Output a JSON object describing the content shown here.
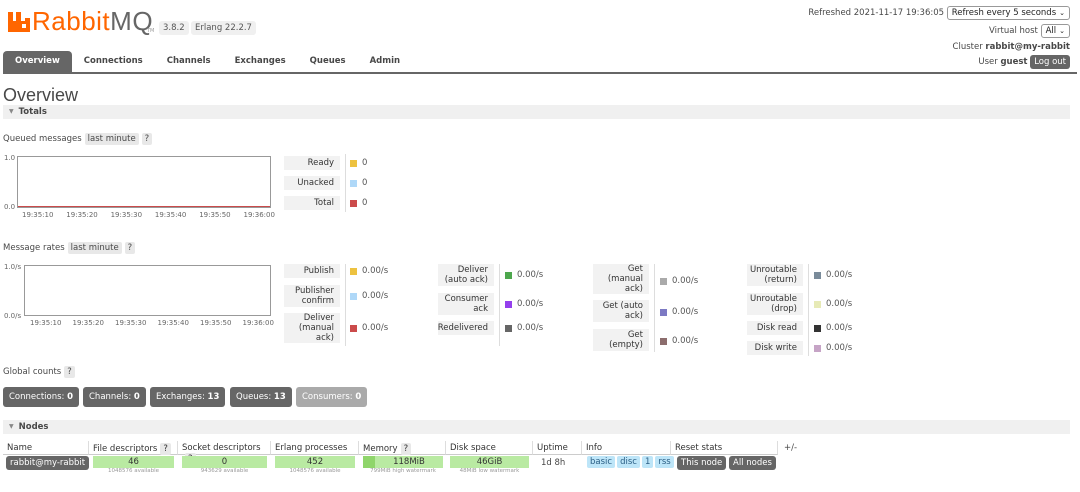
{
  "header": {
    "logo_rabbit": "Rabbit",
    "logo_mq": "MQ",
    "logo_tm": "TM",
    "version": "3.8.2",
    "erlang": "Erlang 22.2.7",
    "refreshed_label": "Refreshed 2021-11-17 19:36:05",
    "refresh_select": "Refresh every 5 seconds",
    "virtual_host_label": "Virtual host",
    "virtual_host_select": "All",
    "cluster_label": "Cluster",
    "cluster_name": "rabbit@my-rabbit",
    "user_label": "User",
    "user_name": "guest",
    "logout": "Log out"
  },
  "tabs": [
    "Overview",
    "Connections",
    "Channels",
    "Exchanges",
    "Queues",
    "Admin"
  ],
  "page_title": "Overview",
  "totals": {
    "section": "Totals",
    "queued_label": "Queued messages",
    "queued_range": "last minute",
    "help": "?",
    "queued_chart": {
      "y_top": "1.0",
      "y_bottom": "0.0",
      "x_ticks": [
        "19:35:10",
        "19:35:20",
        "19:35:30",
        "19:35:40",
        "19:35:50",
        "19:36:00"
      ]
    },
    "queued_legend": [
      {
        "label": "Ready",
        "value": "0",
        "color": "#edc240"
      },
      {
        "label": "Unacked",
        "value": "0",
        "color": "#afd8f8"
      },
      {
        "label": "Total",
        "value": "0",
        "color": "#cb4b4b"
      }
    ],
    "rates_label": "Message rates",
    "rates_range": "last minute",
    "rates_chart": {
      "y_top": "1.0/s",
      "y_bottom": "0.0/s",
      "x_ticks": [
        "19:35:10",
        "19:35:20",
        "19:35:30",
        "19:35:40",
        "19:35:50",
        "19:36:00"
      ]
    },
    "rates_col1": [
      {
        "label": "Publish",
        "value": "0.00/s",
        "color": "#edc240"
      },
      {
        "label": "Publisher confirm",
        "value": "0.00/s",
        "color": "#afd8f8"
      },
      {
        "label": "Deliver (manual ack)",
        "value": "0.00/s",
        "color": "#cb4b4b"
      }
    ],
    "rates_col2": [
      {
        "label": "Deliver (auto ack)",
        "value": "0.00/s",
        "color": "#4da74d"
      },
      {
        "label": "Consumer ack",
        "value": "0.00/s",
        "color": "#9440ed"
      },
      {
        "label": "Redelivered",
        "value": "0.00/s",
        "color": "#666666"
      }
    ],
    "rates_col3": [
      {
        "label": "Get (manual ack)",
        "value": "0.00/s",
        "color": "#aaaaaa"
      },
      {
        "label": "Get (auto ack)",
        "value": "0.00/s",
        "color": "#7c79c3"
      },
      {
        "label": "Get (empty)",
        "value": "0.00/s",
        "color": "#8c6d6d"
      }
    ],
    "rates_col4": [
      {
        "label": "Unroutable (return)",
        "value": "0.00/s",
        "color": "#7a8b9a"
      },
      {
        "label": "Unroutable (drop)",
        "value": "0.00/s",
        "color": "#e7eab6"
      },
      {
        "label": "Disk read",
        "value": "0.00/s",
        "color": "#333333"
      },
      {
        "label": "Disk write",
        "value": "0.00/s",
        "color": "#c6a4c6"
      }
    ],
    "global_label": "Global counts",
    "global": [
      {
        "label": "Connections:",
        "value": "0"
      },
      {
        "label": "Channels:",
        "value": "0"
      },
      {
        "label": "Exchanges:",
        "value": "13"
      },
      {
        "label": "Queues:",
        "value": "13"
      },
      {
        "label": "Consumers:",
        "value": "0"
      }
    ]
  },
  "nodes": {
    "section": "Nodes",
    "headers": [
      "Name",
      "File descriptors",
      "Socket descriptors",
      "Erlang processes",
      "Memory",
      "Disk space",
      "Uptime",
      "Info",
      "Reset stats",
      "+/-"
    ],
    "row": {
      "name": "rabbit@my-rabbit",
      "fd": "46",
      "fd_sub": "1048576 available",
      "sd": "0",
      "sd_sub": "943629 available",
      "ep": "452",
      "ep_sub": "1048576 available",
      "mem": "118MiB",
      "mem_sub": "799MiB high watermark",
      "disk": "46GiB",
      "disk_sub": "48MiB low watermark",
      "uptime": "1d 8h",
      "info": [
        "basic",
        "disc",
        "1",
        "rss"
      ],
      "reset_this": "This node",
      "reset_all": "All nodes"
    }
  }
}
